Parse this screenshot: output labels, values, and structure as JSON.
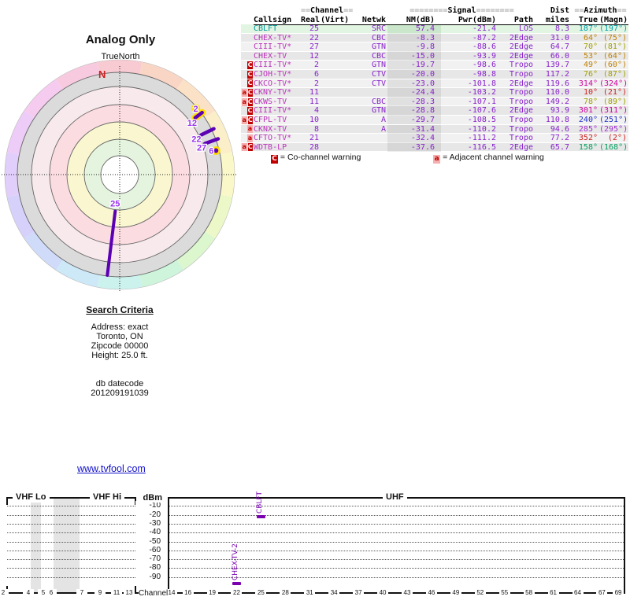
{
  "chart_data": [
    {
      "type": "scatter",
      "polar": true,
      "title": "Analog Only",
      "north_label": "TrueNorth",
      "north_letter": "N",
      "ring_zone_colors": [
        "#FFFFFF",
        "#E4F4DE",
        "#FAF7D0",
        "#FBDCE1",
        "#F7E9EC",
        "#DBDBDB"
      ],
      "compass_ring_colors": [
        "#F8CBD3",
        "#F9D5C6",
        "#FBE2C7",
        "#FBEFC9",
        "#FAF8C9",
        "#EDF8C9",
        "#DCF6CE",
        "#CEF4DC",
        "#CCF2EE",
        "#CDE8F7",
        "#CFDBF9",
        "#D6D1FA",
        "#E1CEFA",
        "#EDCCF8",
        "#F6CBF0",
        "#F8CADF"
      ],
      "marker_color": "#5B00B5",
      "halo_color": "#FFDD00",
      "label_color": "#9933EE",
      "points": [
        {
          "label": "2",
          "azimuth_true": 49,
          "marker": "dot",
          "halo": true
        },
        {
          "label": "12",
          "azimuth_true": 53,
          "marker": "bar",
          "halo": true
        },
        {
          "label": "22",
          "azimuth_true": 64,
          "marker": "bar",
          "halo": false
        },
        {
          "label": "27",
          "azimuth_true": 70,
          "marker": "bar",
          "halo": false
        },
        {
          "label": "6",
          "azimuth_true": 76,
          "marker": "dot",
          "halo": true
        },
        {
          "label": "25",
          "azimuth_true": 187,
          "marker": "spoke",
          "halo": false
        }
      ]
    },
    {
      "type": "scatter",
      "band_labels": [
        "VHF Lo",
        "VHF Hi",
        "UHF"
      ],
      "ylabel": "dBm",
      "yticks": [
        -10,
        -20,
        -30,
        -40,
        -50,
        -60,
        -70,
        -80,
        -90
      ],
      "xlabel": "Channel",
      "vhf_channels": [
        2,
        4,
        5,
        6,
        7,
        9,
        11,
        13
      ],
      "uhf_channels": [
        14,
        16,
        19,
        22,
        25,
        28,
        31,
        34,
        37,
        40,
        43,
        46,
        49,
        52,
        55,
        58,
        61,
        64,
        67,
        69
      ],
      "shaded_gaps": [
        [
          4,
          5
        ],
        [
          6,
          7
        ]
      ],
      "marker_color": "#7A00B0",
      "markers": [
        {
          "label": "CBLFT",
          "channel": 25,
          "dbm": -21.4
        },
        {
          "label": "CHEX-TV-2",
          "channel": 22,
          "dbm": -87.2
        }
      ]
    }
  ],
  "table": {
    "headers": {
      "channel_group": {
        "pre": "==",
        "label": "Channel",
        "post": "=="
      },
      "signal_group": {
        "pre": "========",
        "label": "Signal",
        "post": "========"
      },
      "dist": "Dist",
      "azimuth_group": {
        "pre": "==",
        "label": "Azimuth",
        "post": "=="
      },
      "callsign": "Callsign",
      "real": "Real",
      "virt": "(Virt)",
      "netwk": "Netwk",
      "nm": "NM(dB)",
      "pwr": "Pwr(dBm)",
      "path": "Path",
      "miles": "miles",
      "true": "True",
      "magn": "(Magn)"
    },
    "value_color": "#8822CC",
    "callsign_color": "#BB33BB",
    "rows": [
      {
        "callsign": "CBLFT",
        "real": "25",
        "virt": "",
        "netwk": "SRC",
        "nm": "57.4",
        "pwr": "-21.4",
        "path": "LOS",
        "miles": "8.3",
        "az_true": "187°",
        "az_magn": "(197°)",
        "warnings": [],
        "highlight": true,
        "callsign_color": "#00999A",
        "az_color": "#00A0A8"
      },
      {
        "callsign": "CHEX-TV*",
        "real": "22",
        "virt": "",
        "netwk": "CBC",
        "nm": "-8.3",
        "pwr": "-87.2",
        "path": "2Edge",
        "miles": "31.0",
        "az_true": "64°",
        "az_magn": "(75°)",
        "warnings": [],
        "highlight": false,
        "az_color": "#C08000"
      },
      {
        "callsign": "CIII-TV*",
        "real": "27",
        "virt": "",
        "netwk": "GTN",
        "nm": "-9.8",
        "pwr": "-88.6",
        "path": "2Edge",
        "miles": "64.7",
        "az_true": "70°",
        "az_magn": "(81°)",
        "warnings": [],
        "highlight": false,
        "az_color": "#A0A000"
      },
      {
        "callsign": "CHEX-TV",
        "real": "12",
        "virt": "",
        "netwk": "CBC",
        "nm": "-15.0",
        "pwr": "-93.9",
        "path": "2Edge",
        "miles": "66.0",
        "az_true": "53°",
        "az_magn": "(64°)",
        "warnings": [],
        "highlight": false,
        "az_color": "#C08000"
      },
      {
        "callsign": "CIII-TV*",
        "real": "2",
        "virt": "",
        "netwk": "GTN",
        "nm": "-19.7",
        "pwr": "-98.6",
        "path": "Tropo",
        "miles": "139.7",
        "az_true": "49°",
        "az_magn": "(60°)",
        "warnings": [
          "C"
        ],
        "highlight": false,
        "az_color": "#C08000"
      },
      {
        "callsign": "CJOH-TV*",
        "real": "6",
        "virt": "",
        "netwk": "CTV",
        "nm": "-20.0",
        "pwr": "-98.8",
        "path": "Tropo",
        "miles": "117.2",
        "az_true": "76°",
        "az_magn": "(87°)",
        "warnings": [
          "C"
        ],
        "highlight": false,
        "az_color": "#A0A000"
      },
      {
        "callsign": "CKCO-TV*",
        "real": "2",
        "virt": "",
        "netwk": "CTV",
        "nm": "-23.0",
        "pwr": "-101.8",
        "path": "2Edge",
        "miles": "119.6",
        "az_true": "314°",
        "az_magn": "(324°)",
        "warnings": [
          "C"
        ],
        "highlight": false,
        "az_color": "#D000A0"
      },
      {
        "callsign": "CKNY-TV*",
        "real": "11",
        "virt": "",
        "netwk": "",
        "nm": "-24.4",
        "pwr": "-103.2",
        "path": "Tropo",
        "miles": "110.0",
        "az_true": "10°",
        "az_magn": "(21°)",
        "warnings": [
          "a",
          "C"
        ],
        "highlight": false,
        "az_color": "#D02020"
      },
      {
        "callsign": "CKWS-TV",
        "real": "11",
        "virt": "",
        "netwk": "CBC",
        "nm": "-28.3",
        "pwr": "-107.1",
        "path": "Tropo",
        "miles": "149.2",
        "az_true": "78°",
        "az_magn": "(89°)",
        "warnings": [
          "a",
          "C"
        ],
        "highlight": false,
        "az_color": "#A0A000"
      },
      {
        "callsign": "CIII-TV*",
        "real": "4",
        "virt": "",
        "netwk": "GTN",
        "nm": "-28.8",
        "pwr": "-107.6",
        "path": "2Edge",
        "miles": "93.9",
        "az_true": "301°",
        "az_magn": "(311°)",
        "warnings": [
          "C"
        ],
        "highlight": false,
        "az_color": "#D000A0"
      },
      {
        "callsign": "CFPL-TV",
        "real": "10",
        "virt": "",
        "netwk": "A",
        "nm": "-29.7",
        "pwr": "-108.5",
        "path": "Tropo",
        "miles": "110.8",
        "az_true": "240°",
        "az_magn": "(251°)",
        "warnings": [
          "a",
          "C"
        ],
        "highlight": false,
        "az_color": "#2030C8"
      },
      {
        "callsign": "CKNX-TV",
        "real": "8",
        "virt": "",
        "netwk": "A",
        "nm": "-31.4",
        "pwr": "-110.2",
        "path": "Tropo",
        "miles": "94.6",
        "az_true": "285°",
        "az_magn": "(295°)",
        "warnings": [
          "a"
        ],
        "highlight": false,
        "az_color": "#A030D0"
      },
      {
        "callsign": "CFTO-TV*",
        "real": "21",
        "virt": "",
        "netwk": "",
        "nm": "-32.4",
        "pwr": "-111.2",
        "path": "Tropo",
        "miles": "77.2",
        "az_true": "352°",
        "az_magn": "(2°)",
        "warnings": [
          "a"
        ],
        "highlight": false,
        "az_color": "#D02020"
      },
      {
        "callsign": "WDTB-LP",
        "real": "28",
        "virt": "",
        "netwk": "",
        "nm": "-37.6",
        "pwr": "-116.5",
        "path": "2Edge",
        "miles": "65.7",
        "az_true": "158°",
        "az_magn": "(168°)",
        "warnings": [
          "a",
          "C"
        ],
        "highlight": false,
        "az_color": "#00A060"
      }
    ],
    "legend": {
      "co_box": "C",
      "co_text": "= Co-channel warning",
      "adj_box": "a",
      "adj_text": "= Adjacent channel warning"
    }
  },
  "search_criteria": {
    "title": "Search Criteria",
    "address": "Address: exact",
    "city": "Toronto, ON",
    "zipcode": "Zipcode 00000",
    "height": "Height: 25.0 ft.",
    "db_label": "db datecode",
    "db_value": "201209191039"
  },
  "link": {
    "text": "www.tvfool.com"
  }
}
